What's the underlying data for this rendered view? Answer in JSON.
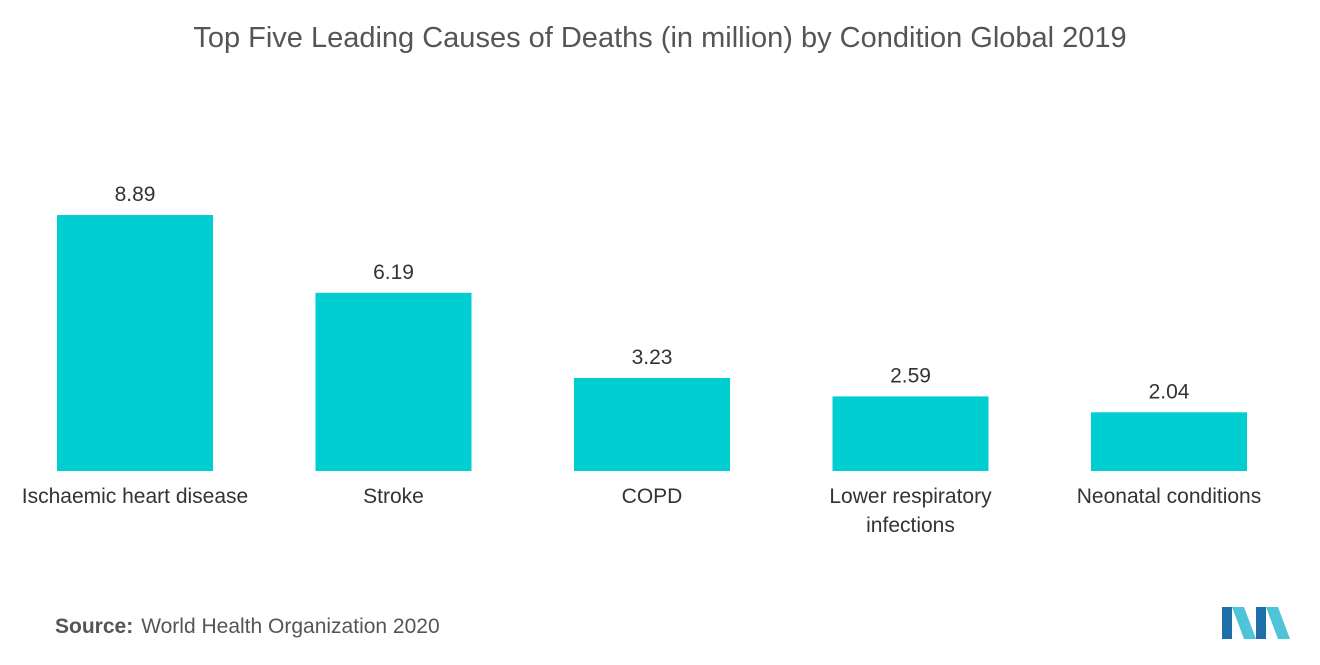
{
  "title": "Top Five Leading Causes of Deaths (in million) by Condition Global 2019",
  "source": {
    "label": "Source:",
    "text": "World Health Organization 2020"
  },
  "colors": {
    "bar": "#00CED1",
    "text": "#333333",
    "logo_dark": "#1F6FA8",
    "logo_light": "#4FC3D8"
  },
  "logo_icon": "mordor-intelligence-logo",
  "chart_data": {
    "type": "bar",
    "title": "Top Five Leading Causes of Deaths (in million) by Condition Global 2019",
    "categories": [
      [
        "Ischaemic heart disease"
      ],
      [
        "Stroke"
      ],
      [
        "COPD"
      ],
      [
        "Lower respiratory",
        "infections"
      ],
      [
        "Neonatal conditions"
      ]
    ],
    "values": [
      8.89,
      6.19,
      3.23,
      2.59,
      2.04
    ],
    "value_labels": [
      "8.89",
      "6.19",
      "3.23",
      "2.59",
      "2.04"
    ],
    "xlabel": "",
    "ylabel": "",
    "ylim": [
      0,
      8.89
    ],
    "grid": false,
    "legend": "none"
  }
}
